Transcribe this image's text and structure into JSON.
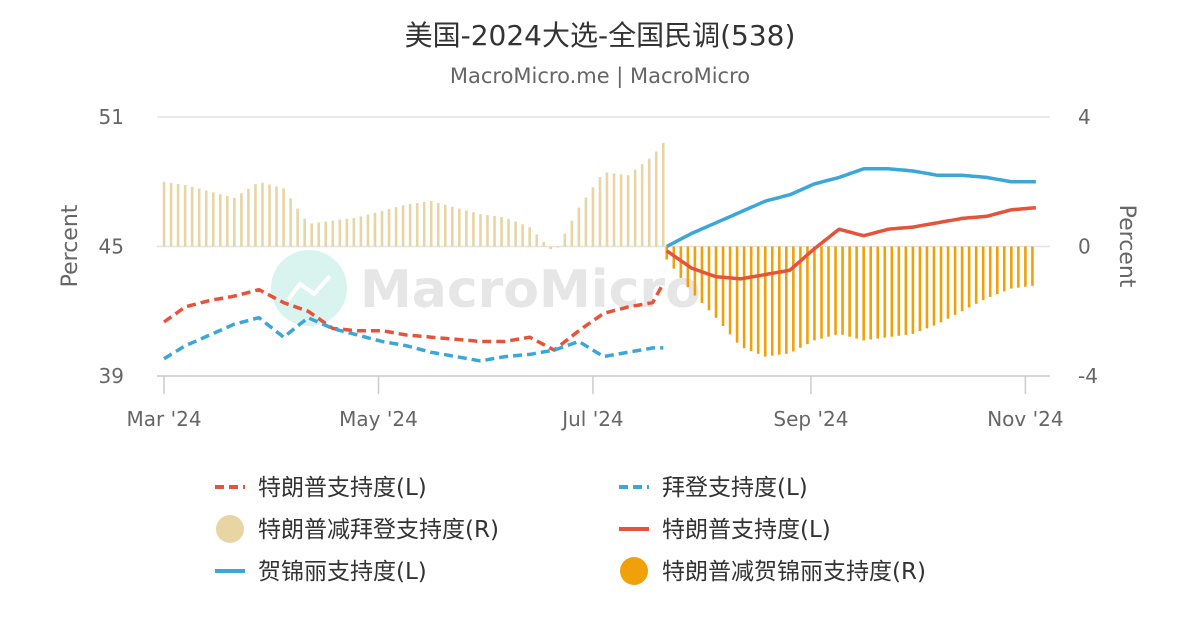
{
  "chart_data": {
    "type": "line",
    "title": "美国-2024大选-全国民调(538)",
    "subtitle": "MacroMicro.me | MacroMicro",
    "watermark": "MacroMicro",
    "left_axis": {
      "label": "Percent",
      "range": [
        39,
        51
      ],
      "ticks": [
        "51",
        "45",
        "39"
      ]
    },
    "right_axis": {
      "label": "Percent",
      "range": [
        -4,
        4
      ],
      "ticks": [
        "4",
        "0",
        "-4"
      ]
    },
    "x_axis": {
      "range": [
        "2024-02-28",
        "2024-11-08"
      ],
      "ticks": [
        "Mar '24",
        "May '24",
        "Jul '24",
        "Sep '24",
        "Nov '24"
      ]
    },
    "colors": {
      "trump_vs_biden": "#e5533a",
      "biden": "#3aa7d8",
      "diff_biden": "#e8d5a4",
      "trump_vs_harris": "#e5533a",
      "harris": "#3aa7d8",
      "diff_harris": "#f0a10a"
    },
    "legend": [
      {
        "label": "特朗普支持度(L)",
        "style": "dashed",
        "color": "#e5533a"
      },
      {
        "label": "拜登支持度(L)",
        "style": "dashed",
        "color": "#3aa7d8"
      },
      {
        "label": "特朗普减拜登支持度(R)",
        "style": "dot",
        "color": "#e8d5a4"
      },
      {
        "label": "特朗普支持度(L)",
        "style": "solid",
        "color": "#e5533a"
      },
      {
        "label": "贺锦丽支持度(L)",
        "style": "solid",
        "color": "#3aa7d8"
      },
      {
        "label": "特朗普减贺锦丽支持度(R)",
        "style": "dot",
        "color": "#f0a10a"
      }
    ],
    "series": [
      {
        "name": "特朗普支持度(L)",
        "axis": "left",
        "style": "dashed",
        "x": [
          "2024-03-01",
          "2024-03-07",
          "2024-03-14",
          "2024-03-21",
          "2024-03-28",
          "2024-04-04",
          "2024-04-11",
          "2024-04-18",
          "2024-04-25",
          "2024-05-02",
          "2024-05-09",
          "2024-05-16",
          "2024-05-23",
          "2024-05-30",
          "2024-06-06",
          "2024-06-13",
          "2024-06-20",
          "2024-06-27",
          "2024-07-04",
          "2024-07-11",
          "2024-07-18",
          "2024-07-21"
        ],
        "y": [
          41.5,
          42.2,
          42.5,
          42.7,
          43.0,
          42.4,
          42.0,
          41.2,
          41.1,
          41.1,
          40.9,
          40.8,
          40.7,
          40.6,
          40.6,
          40.8,
          40.2,
          41.1,
          41.9,
          42.2,
          42.4,
          43.3
        ]
      },
      {
        "name": "拜登支持度(L)",
        "axis": "left",
        "style": "dashed",
        "x": [
          "2024-03-01",
          "2024-03-07",
          "2024-03-14",
          "2024-03-21",
          "2024-03-28",
          "2024-04-04",
          "2024-04-11",
          "2024-04-18",
          "2024-04-25",
          "2024-05-02",
          "2024-05-09",
          "2024-05-16",
          "2024-05-23",
          "2024-05-30",
          "2024-06-06",
          "2024-06-13",
          "2024-06-20",
          "2024-06-27",
          "2024-07-04",
          "2024-07-11",
          "2024-07-18",
          "2024-07-21"
        ],
        "y": [
          39.8,
          40.4,
          40.9,
          41.4,
          41.7,
          40.8,
          41.7,
          41.2,
          40.9,
          40.6,
          40.4,
          40.1,
          39.9,
          39.7,
          39.9,
          40.0,
          40.2,
          40.6,
          39.9,
          40.1,
          40.3,
          40.3
        ]
      },
      {
        "name": "特朗普减拜登支持度(R)",
        "axis": "right",
        "style": "bar",
        "x": [
          "2024-03-01",
          "2024-03-07",
          "2024-03-14",
          "2024-03-21",
          "2024-03-28",
          "2024-04-04",
          "2024-04-11",
          "2024-04-18",
          "2024-04-25",
          "2024-05-02",
          "2024-05-09",
          "2024-05-16",
          "2024-05-23",
          "2024-05-30",
          "2024-06-06",
          "2024-06-13",
          "2024-06-20",
          "2024-06-27",
          "2024-07-04",
          "2024-07-11",
          "2024-07-18",
          "2024-07-21"
        ],
        "y": [
          2.0,
          1.9,
          1.7,
          1.5,
          2.0,
          1.8,
          0.7,
          0.8,
          0.9,
          1.1,
          1.3,
          1.4,
          1.2,
          1.0,
          0.9,
          0.6,
          -0.2,
          1.2,
          2.3,
          2.2,
          2.8,
          3.2
        ]
      },
      {
        "name": "特朗普支持度(L)",
        "axis": "left",
        "style": "solid",
        "x": [
          "2024-07-22",
          "2024-07-29",
          "2024-08-05",
          "2024-08-12",
          "2024-08-19",
          "2024-08-26",
          "2024-09-02",
          "2024-09-09",
          "2024-09-16",
          "2024-09-23",
          "2024-09-30",
          "2024-10-07",
          "2024-10-14",
          "2024-10-21",
          "2024-10-28",
          "2024-11-04"
        ],
        "y": [
          44.8,
          44.0,
          43.6,
          43.5,
          43.7,
          43.9,
          44.9,
          45.8,
          45.5,
          45.8,
          45.9,
          46.1,
          46.3,
          46.4,
          46.7,
          46.8
        ]
      },
      {
        "name": "贺锦丽支持度(L)",
        "axis": "left",
        "style": "solid",
        "x": [
          "2024-07-22",
          "2024-07-29",
          "2024-08-05",
          "2024-08-12",
          "2024-08-19",
          "2024-08-26",
          "2024-09-02",
          "2024-09-09",
          "2024-09-16",
          "2024-09-23",
          "2024-09-30",
          "2024-10-07",
          "2024-10-14",
          "2024-10-21",
          "2024-10-28",
          "2024-11-04"
        ],
        "y": [
          45.0,
          45.6,
          46.1,
          46.6,
          47.1,
          47.4,
          47.9,
          48.2,
          48.6,
          48.6,
          48.5,
          48.3,
          48.3,
          48.2,
          48.0,
          48.0
        ]
      },
      {
        "name": "特朗普减贺锦丽支持度(R)",
        "axis": "right",
        "style": "bar",
        "x": [
          "2024-07-22",
          "2024-07-29",
          "2024-08-05",
          "2024-08-12",
          "2024-08-19",
          "2024-08-26",
          "2024-09-02",
          "2024-09-09",
          "2024-09-16",
          "2024-09-23",
          "2024-09-30",
          "2024-10-07",
          "2024-10-14",
          "2024-10-21",
          "2024-10-28",
          "2024-11-04"
        ],
        "y": [
          -0.4,
          -1.4,
          -2.2,
          -3.1,
          -3.4,
          -3.3,
          -2.9,
          -2.7,
          -2.9,
          -2.8,
          -2.7,
          -2.4,
          -2.0,
          -1.6,
          -1.3,
          -1.2
        ]
      }
    ],
    "grid": true,
    "legend_position": "bottom"
  }
}
